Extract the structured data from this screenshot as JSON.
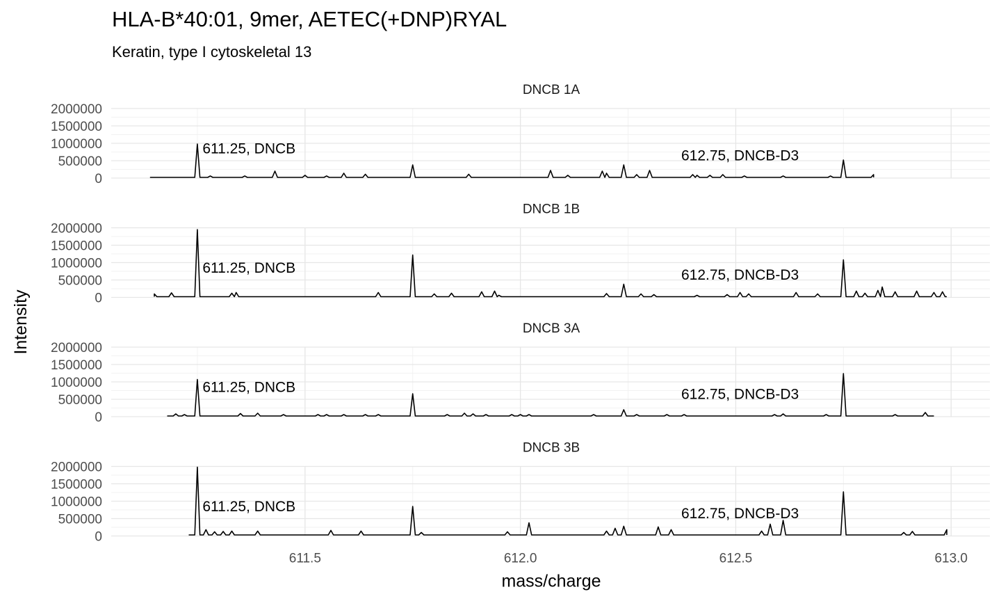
{
  "chart_data": {
    "type": "line",
    "title": "HLA-B*40:01, 9mer, AETEC(+DNP)RYAL",
    "subtitle": "Keratin, type I cytoskeletal 13",
    "xlabel": "mass/charge",
    "ylabel": "Intensity",
    "xlim": [
      611.05,
      613.09
    ],
    "ylim": [
      0,
      2000000
    ],
    "x_ticks": [
      611.5,
      612.0,
      612.5,
      613.0
    ],
    "x_tick_labels": [
      "611.5",
      "612.0",
      "612.5",
      "613.0"
    ],
    "y_ticks": [
      0,
      500000,
      1000000,
      1500000,
      2000000
    ],
    "y_tick_labels": [
      "0",
      "500000",
      "1000000",
      "1500000",
      "2000000"
    ],
    "grid": true,
    "facets": [
      {
        "name": "DNCB 1A",
        "x_range": [
          611.14,
          612.82
        ],
        "baseline": 20000,
        "annotations": [
          {
            "x": 611.37,
            "y": 850000,
            "text": "611.25, DNCB"
          },
          {
            "x": 612.51,
            "y": 650000,
            "text": "612.75, DNCB-D3"
          }
        ],
        "peaks": [
          [
            611.25,
            980000
          ],
          [
            611.28,
            60000
          ],
          [
            611.36,
            60000
          ],
          [
            611.43,
            200000
          ],
          [
            611.5,
            80000
          ],
          [
            611.55,
            60000
          ],
          [
            611.59,
            140000
          ],
          [
            611.64,
            110000
          ],
          [
            611.75,
            380000
          ],
          [
            611.88,
            110000
          ],
          [
            612.07,
            220000
          ],
          [
            612.11,
            80000
          ],
          [
            612.19,
            200000
          ],
          [
            612.2,
            140000
          ],
          [
            612.24,
            380000
          ],
          [
            612.27,
            100000
          ],
          [
            612.3,
            220000
          ],
          [
            612.4,
            100000
          ],
          [
            612.41,
            80000
          ],
          [
            612.44,
            80000
          ],
          [
            612.47,
            100000
          ],
          [
            612.52,
            60000
          ],
          [
            612.61,
            60000
          ],
          [
            612.72,
            60000
          ],
          [
            612.75,
            520000
          ],
          [
            612.82,
            100000
          ]
        ]
      },
      {
        "name": "DNCB 1B",
        "x_range": [
          611.15,
          612.99
        ],
        "baseline": 20000,
        "annotations": [
          {
            "x": 611.37,
            "y": 850000,
            "text": "611.25, DNCB"
          },
          {
            "x": 612.51,
            "y": 650000,
            "text": "612.75, DNCB-D3"
          }
        ],
        "peaks": [
          [
            611.15,
            100000
          ],
          [
            611.19,
            130000
          ],
          [
            611.25,
            1950000
          ],
          [
            611.33,
            120000
          ],
          [
            611.34,
            140000
          ],
          [
            611.67,
            140000
          ],
          [
            611.75,
            1220000
          ],
          [
            611.8,
            100000
          ],
          [
            611.84,
            120000
          ],
          [
            611.91,
            160000
          ],
          [
            611.94,
            180000
          ],
          [
            611.95,
            60000
          ],
          [
            612.2,
            110000
          ],
          [
            612.24,
            380000
          ],
          [
            612.28,
            100000
          ],
          [
            612.31,
            80000
          ],
          [
            612.41,
            60000
          ],
          [
            612.48,
            80000
          ],
          [
            612.51,
            140000
          ],
          [
            612.53,
            100000
          ],
          [
            612.64,
            140000
          ],
          [
            612.69,
            100000
          ],
          [
            612.75,
            1080000
          ],
          [
            612.78,
            180000
          ],
          [
            612.8,
            120000
          ],
          [
            612.83,
            200000
          ],
          [
            612.84,
            300000
          ],
          [
            612.87,
            160000
          ],
          [
            612.92,
            180000
          ],
          [
            612.96,
            140000
          ],
          [
            612.98,
            160000
          ]
        ]
      },
      {
        "name": "DNCB 3A",
        "x_range": [
          611.18,
          612.96
        ],
        "baseline": 20000,
        "annotations": [
          {
            "x": 611.37,
            "y": 850000,
            "text": "611.25, DNCB"
          },
          {
            "x": 612.51,
            "y": 650000,
            "text": "612.75, DNCB-D3"
          }
        ],
        "peaks": [
          [
            611.2,
            80000
          ],
          [
            611.22,
            60000
          ],
          [
            611.25,
            1070000
          ],
          [
            611.35,
            90000
          ],
          [
            611.39,
            100000
          ],
          [
            611.45,
            60000
          ],
          [
            611.53,
            60000
          ],
          [
            611.55,
            60000
          ],
          [
            611.59,
            60000
          ],
          [
            611.64,
            60000
          ],
          [
            611.67,
            60000
          ],
          [
            611.75,
            660000
          ],
          [
            611.83,
            60000
          ],
          [
            611.87,
            100000
          ],
          [
            611.89,
            80000
          ],
          [
            611.92,
            60000
          ],
          [
            611.98,
            60000
          ],
          [
            612.0,
            60000
          ],
          [
            612.02,
            60000
          ],
          [
            612.17,
            60000
          ],
          [
            612.24,
            200000
          ],
          [
            612.27,
            60000
          ],
          [
            612.34,
            60000
          ],
          [
            612.38,
            60000
          ],
          [
            612.59,
            60000
          ],
          [
            612.61,
            80000
          ],
          [
            612.71,
            60000
          ],
          [
            612.75,
            1240000
          ],
          [
            612.87,
            60000
          ],
          [
            612.94,
            120000
          ]
        ]
      },
      {
        "name": "DNCB 3B",
        "x_range": [
          611.23,
          612.99
        ],
        "baseline": 30000,
        "annotations": [
          {
            "x": 611.37,
            "y": 850000,
            "text": "611.25, DNCB"
          },
          {
            "x": 612.51,
            "y": 650000,
            "text": "612.75, DNCB-D3"
          }
        ],
        "peaks": [
          [
            611.25,
            1980000
          ],
          [
            611.27,
            180000
          ],
          [
            611.29,
            120000
          ],
          [
            611.31,
            130000
          ],
          [
            611.33,
            140000
          ],
          [
            611.39,
            140000
          ],
          [
            611.56,
            160000
          ],
          [
            611.63,
            140000
          ],
          [
            611.75,
            850000
          ],
          [
            611.77,
            100000
          ],
          [
            611.97,
            120000
          ],
          [
            612.02,
            380000
          ],
          [
            612.2,
            140000
          ],
          [
            612.22,
            220000
          ],
          [
            612.24,
            280000
          ],
          [
            612.32,
            260000
          ],
          [
            612.35,
            180000
          ],
          [
            612.56,
            140000
          ],
          [
            612.58,
            340000
          ],
          [
            612.61,
            450000
          ],
          [
            612.75,
            1270000
          ],
          [
            612.89,
            100000
          ],
          [
            612.91,
            130000
          ],
          [
            612.99,
            180000
          ]
        ]
      }
    ]
  }
}
